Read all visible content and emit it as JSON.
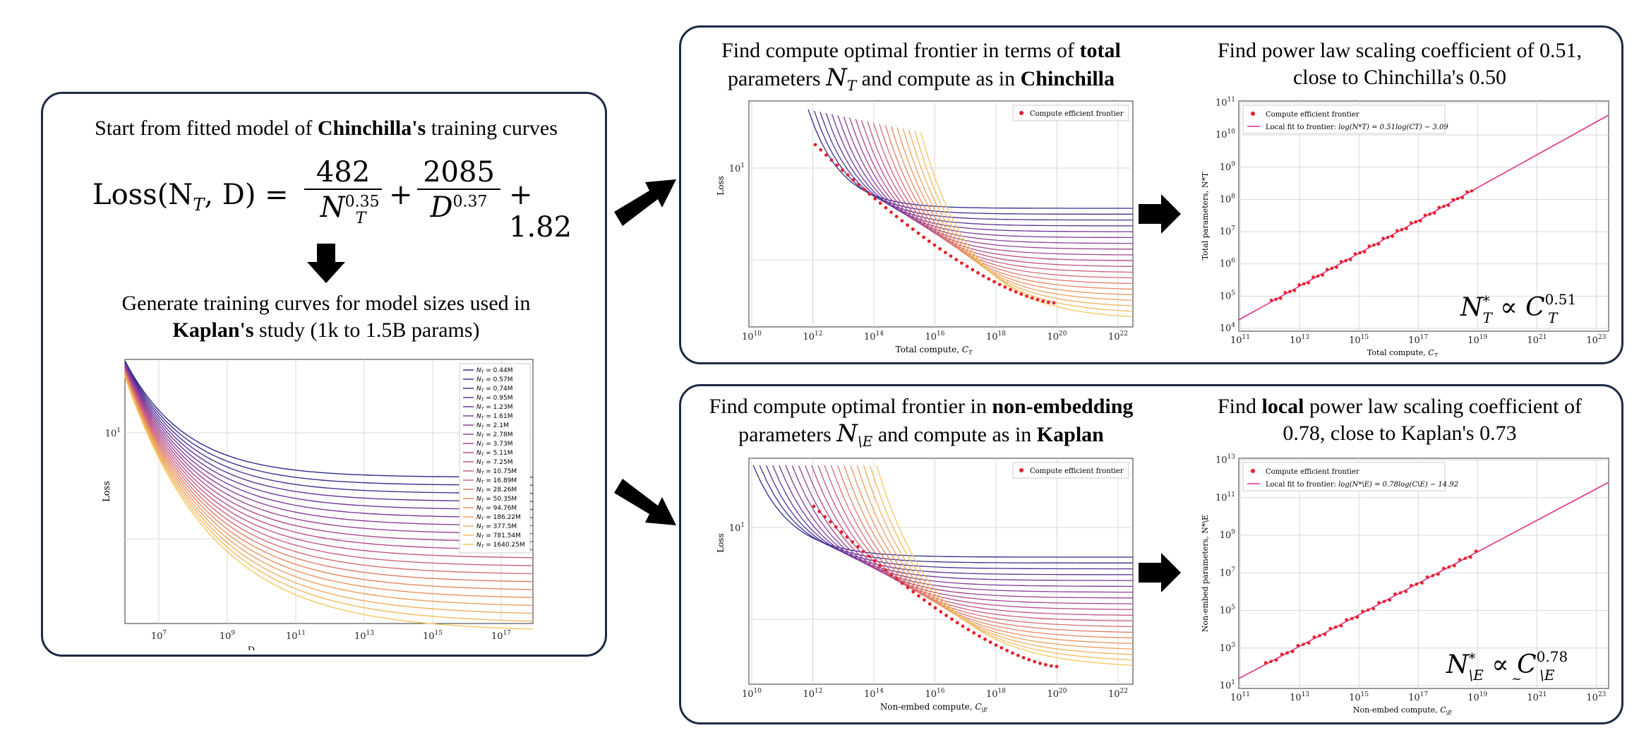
{
  "left_panel": {
    "caption_pre": "Start from fitted model of ",
    "caption_bold": "Chinchilla's",
    "caption_post": " training curves",
    "formula": {
      "lhs": "Loss(N",
      "lhs_sub": "T",
      "lhs_tail": ", D) =",
      "t1_num": "482",
      "t1_den": "N",
      "t1_sub": "T",
      "t1_exp": "0.35",
      "t2_num": "2085",
      "t2_den": "D",
      "t2_exp": "0.37",
      "tail": "+ 1.82"
    },
    "caption2_line1": "Generate training curves for model sizes used in",
    "caption2_bold": "Kaplan's",
    "caption2_post": " study (1k to 1.5B params)",
    "chart": {
      "xlabel": "D",
      "ylabel": "Loss",
      "ytick": "10",
      "ytick_exp": "1",
      "xticks": [
        {
          "base": "10",
          "exp": "7"
        },
        {
          "base": "10",
          "exp": "9"
        },
        {
          "base": "10",
          "exp": "11"
        },
        {
          "base": "10",
          "exp": "13"
        },
        {
          "base": "10",
          "exp": "15"
        },
        {
          "base": "10",
          "exp": "17"
        }
      ],
      "legend_prefix": "N",
      "legend_sub": "T",
      "legend": [
        "= 0.44M",
        "= 0.57M",
        "= 0.74M",
        "= 0.95M",
        "= 1.23M",
        "= 1.61M",
        "= 2.1M",
        "= 2.78M",
        "= 3.73M",
        "= 5.11M",
        "= 7.25M",
        "= 10.75M",
        "= 16.89M",
        "= 28.26M",
        "= 50.35M",
        "= 94.76M",
        "= 186.22M",
        "= 377.5M",
        "= 781.54M",
        "= 1640.25M"
      ]
    }
  },
  "top_right_panel": {
    "left_caption": {
      "line1_pre": "Find compute optimal frontier in terms of ",
      "line1_bold": "total",
      "line2_pre": "parameters ",
      "sym": "N",
      "sym_sub": "T",
      "line2_mid": " and compute as in ",
      "line2_bold": "Chinchilla"
    },
    "left_chart": {
      "legend": "Compute efficient frontier",
      "ylabel": "Loss",
      "xlabel_pre": "Total compute, ",
      "xlabel_sym": "C",
      "xlabel_sub": "T",
      "ytick": "10",
      "ytick_exp": "1",
      "xticks": [
        {
          "base": "10",
          "exp": "10"
        },
        {
          "base": "10",
          "exp": "12"
        },
        {
          "base": "10",
          "exp": "14"
        },
        {
          "base": "10",
          "exp": "16"
        },
        {
          "base": "10",
          "exp": "18"
        },
        {
          "base": "10",
          "exp": "20"
        },
        {
          "base": "10",
          "exp": "22"
        }
      ]
    },
    "right_caption": {
      "line1": "Find power law scaling coefficient of 0.51,",
      "line2": "close to Chinchilla's 0.50"
    },
    "right_chart": {
      "legend_points": "Compute efficient frontier",
      "legend_fit_pre": "Local fit to frontier: ",
      "legend_fit_eq": "log(N*T) = 0.51log(CT) − 3.09",
      "ylabel_pre": "Total parameters, ",
      "ylabel_sym": "N*T",
      "xlabel_pre": "Total compute, ",
      "xlabel_sym": "C",
      "xlabel_sub": "T",
      "yticks": [
        {
          "base": "10",
          "exp": "4"
        },
        {
          "base": "10",
          "exp": "5"
        },
        {
          "base": "10",
          "exp": "6"
        },
        {
          "base": "10",
          "exp": "7"
        },
        {
          "base": "10",
          "exp": "8"
        },
        {
          "base": "10",
          "exp": "9"
        },
        {
          "base": "10",
          "exp": "10"
        },
        {
          "base": "10",
          "exp": "11"
        }
      ],
      "xticks": [
        {
          "base": "10",
          "exp": "11"
        },
        {
          "base": "10",
          "exp": "13"
        },
        {
          "base": "10",
          "exp": "15"
        },
        {
          "base": "10",
          "exp": "17"
        },
        {
          "base": "10",
          "exp": "19"
        },
        {
          "base": "10",
          "exp": "21"
        },
        {
          "base": "10",
          "exp": "23"
        }
      ],
      "relation": {
        "lhs": "N",
        "lhs_sup": "*",
        "lhs_sub": "T",
        "rel": "∝",
        "rhs": "C",
        "rhs_sub": "T",
        "rhs_exp": "0.51"
      }
    }
  },
  "bottom_right_panel": {
    "left_caption": {
      "line1_pre": "Find compute optimal frontier in ",
      "line1_bold": "non-embedding",
      "line2_pre": "parameters ",
      "sym": "N",
      "sym_sub": "\\E",
      "line2_mid": " and compute as in ",
      "line2_bold": "Kaplan"
    },
    "left_chart": {
      "legend": "Compute efficient frontier",
      "ylabel": "Loss",
      "xlabel_pre": "Non-embed compute, ",
      "xlabel_sym": "C",
      "xlabel_sub": "\\E",
      "ytick": "10",
      "ytick_exp": "1",
      "xticks": [
        {
          "base": "10",
          "exp": "10"
        },
        {
          "base": "10",
          "exp": "12"
        },
        {
          "base": "10",
          "exp": "14"
        },
        {
          "base": "10",
          "exp": "16"
        },
        {
          "base": "10",
          "exp": "18"
        },
        {
          "base": "10",
          "exp": "20"
        },
        {
          "base": "10",
          "exp": "22"
        }
      ]
    },
    "right_caption": {
      "line1_pre": "Find ",
      "line1_bold": "local",
      "line1_post": " power law scaling coefficient of",
      "line2": "0.78, close to Kaplan's 0.73"
    },
    "right_chart": {
      "legend_points": "Compute efficient frontier",
      "legend_fit_pre": "Local fit to frontier: ",
      "legend_fit_eq": "log(N*\\E) = 0.78log(C\\E) − 14.92",
      "ylabel_pre": "Non-embed parameters, ",
      "ylabel_sym": "N*\\E",
      "xlabel_pre": "Non-embed compute, ",
      "xlabel_sym": "C",
      "xlabel_sub": "\\E",
      "yticks": [
        {
          "base": "10",
          "exp": "1"
        },
        {
          "base": "10",
          "exp": "3"
        },
        {
          "base": "10",
          "exp": "5"
        },
        {
          "base": "10",
          "exp": "7"
        },
        {
          "base": "10",
          "exp": "9"
        },
        {
          "base": "10",
          "exp": "11"
        },
        {
          "base": "10",
          "exp": "13"
        }
      ],
      "xticks": [
        {
          "base": "10",
          "exp": "11"
        },
        {
          "base": "10",
          "exp": "13"
        },
        {
          "base": "10",
          "exp": "15"
        },
        {
          "base": "10",
          "exp": "17"
        },
        {
          "base": "10",
          "exp": "19"
        },
        {
          "base": "10",
          "exp": "21"
        },
        {
          "base": "10",
          "exp": "23"
        }
      ],
      "relation": {
        "lhs": "N",
        "lhs_sup": "*",
        "lhs_sub": "\\E",
        "rel": "∝",
        "rel_under": "~",
        "rhs": "C",
        "rhs_sub": "\\E",
        "rhs_exp": "0.78"
      }
    }
  },
  "colors": {
    "border": "#1d2a44",
    "curve_start": "#2c2c8c",
    "curve_end": "#f5c85c",
    "frontier": "#e8202a",
    "fit_line": "#e0308c",
    "grid": "#d8d8d8",
    "arrow": "#000000"
  }
}
